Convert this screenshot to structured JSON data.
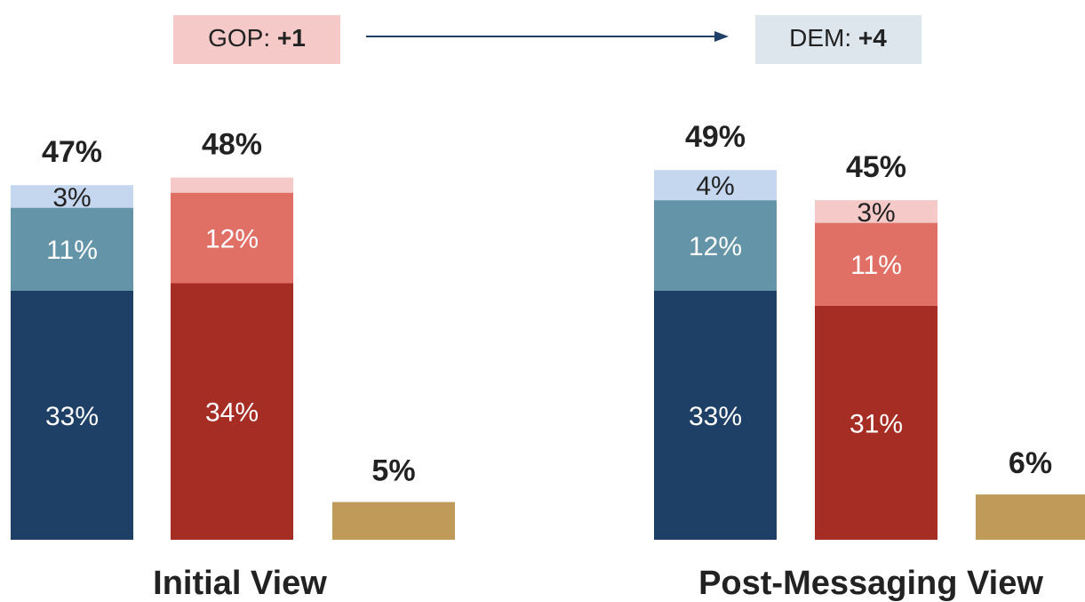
{
  "header": {
    "from": {
      "label": "GOP:",
      "margin": 1,
      "margin_label": "+1"
    },
    "to": {
      "label": "DEM:",
      "margin": 4,
      "margin_label": "+4"
    }
  },
  "chart_data": [
    {
      "type": "stacked_bar",
      "title": "Initial View",
      "ylim": [
        0,
        70
      ],
      "bars": [
        {
          "values": [
            33,
            11,
            3
          ],
          "value_labels": [
            "33%",
            "11%",
            "3%"
          ],
          "colors": [
            "#1e3f66",
            "#6494a8",
            "#c5d7ef"
          ],
          "total": 47,
          "total_label": "47%"
        },
        {
          "values": [
            34,
            12,
            2
          ],
          "value_labels": [
            "34%",
            "12%",
            null
          ],
          "colors": [
            "#a52d23",
            "#e07066",
            "#f4c9c7"
          ],
          "total": 48,
          "total_label": "48%"
        },
        {
          "values": [
            5
          ],
          "value_labels": [
            "5%"
          ],
          "colors": [
            "#c09a58"
          ]
        }
      ]
    },
    {
      "type": "stacked_bar",
      "title": "Post-Messaging View",
      "ylim": [
        0,
        70
      ],
      "bars": [
        {
          "values": [
            33,
            12,
            4
          ],
          "value_labels": [
            "33%",
            "12%",
            "4%"
          ],
          "colors": [
            "#1e3f66",
            "#6494a8",
            "#c5d7ef"
          ],
          "total": 49,
          "total_label": "49%"
        },
        {
          "values": [
            31,
            11,
            3
          ],
          "value_labels": [
            "31%",
            "11%",
            "3%"
          ],
          "colors": [
            "#a52d23",
            "#e07066",
            "#f4c9c7"
          ],
          "total": 45,
          "total_label": "45%"
        },
        {
          "values": [
            6
          ],
          "value_labels": [
            "6%"
          ],
          "colors": [
            "#c09a58"
          ]
        }
      ]
    }
  ]
}
